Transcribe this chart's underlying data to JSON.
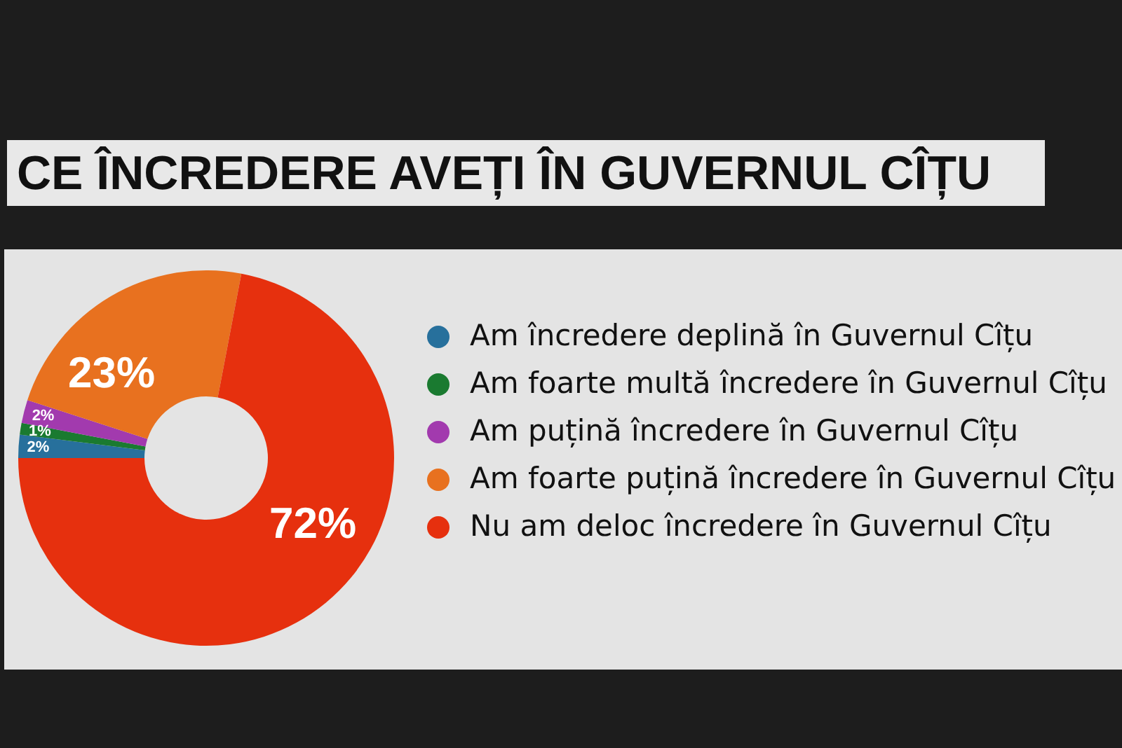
{
  "chart_data": {
    "type": "donut",
    "title": "CE ÎNCREDERE AVEȚI ÎN GUVERNUL CÎȚU",
    "categories": [
      "Am încredere deplină în Guvernul Cîțu",
      "Am foarte multă încredere în Guvernul Cîțu",
      "Am puțină încredere în Guvernul Cîțu",
      "Am foarte puțină încredere în Guvernul Cîțu",
      "Nu am deloc încredere în Guvernul Cîțu"
    ],
    "values": [
      2,
      1,
      2,
      23,
      72
    ],
    "colors": [
      "#27709c",
      "#1a7a30",
      "#a23aae",
      "#e8711f",
      "#e6300e"
    ],
    "value_labels": [
      "2%",
      "1%",
      "2%",
      "23%",
      "72%"
    ],
    "legend": "right"
  }
}
